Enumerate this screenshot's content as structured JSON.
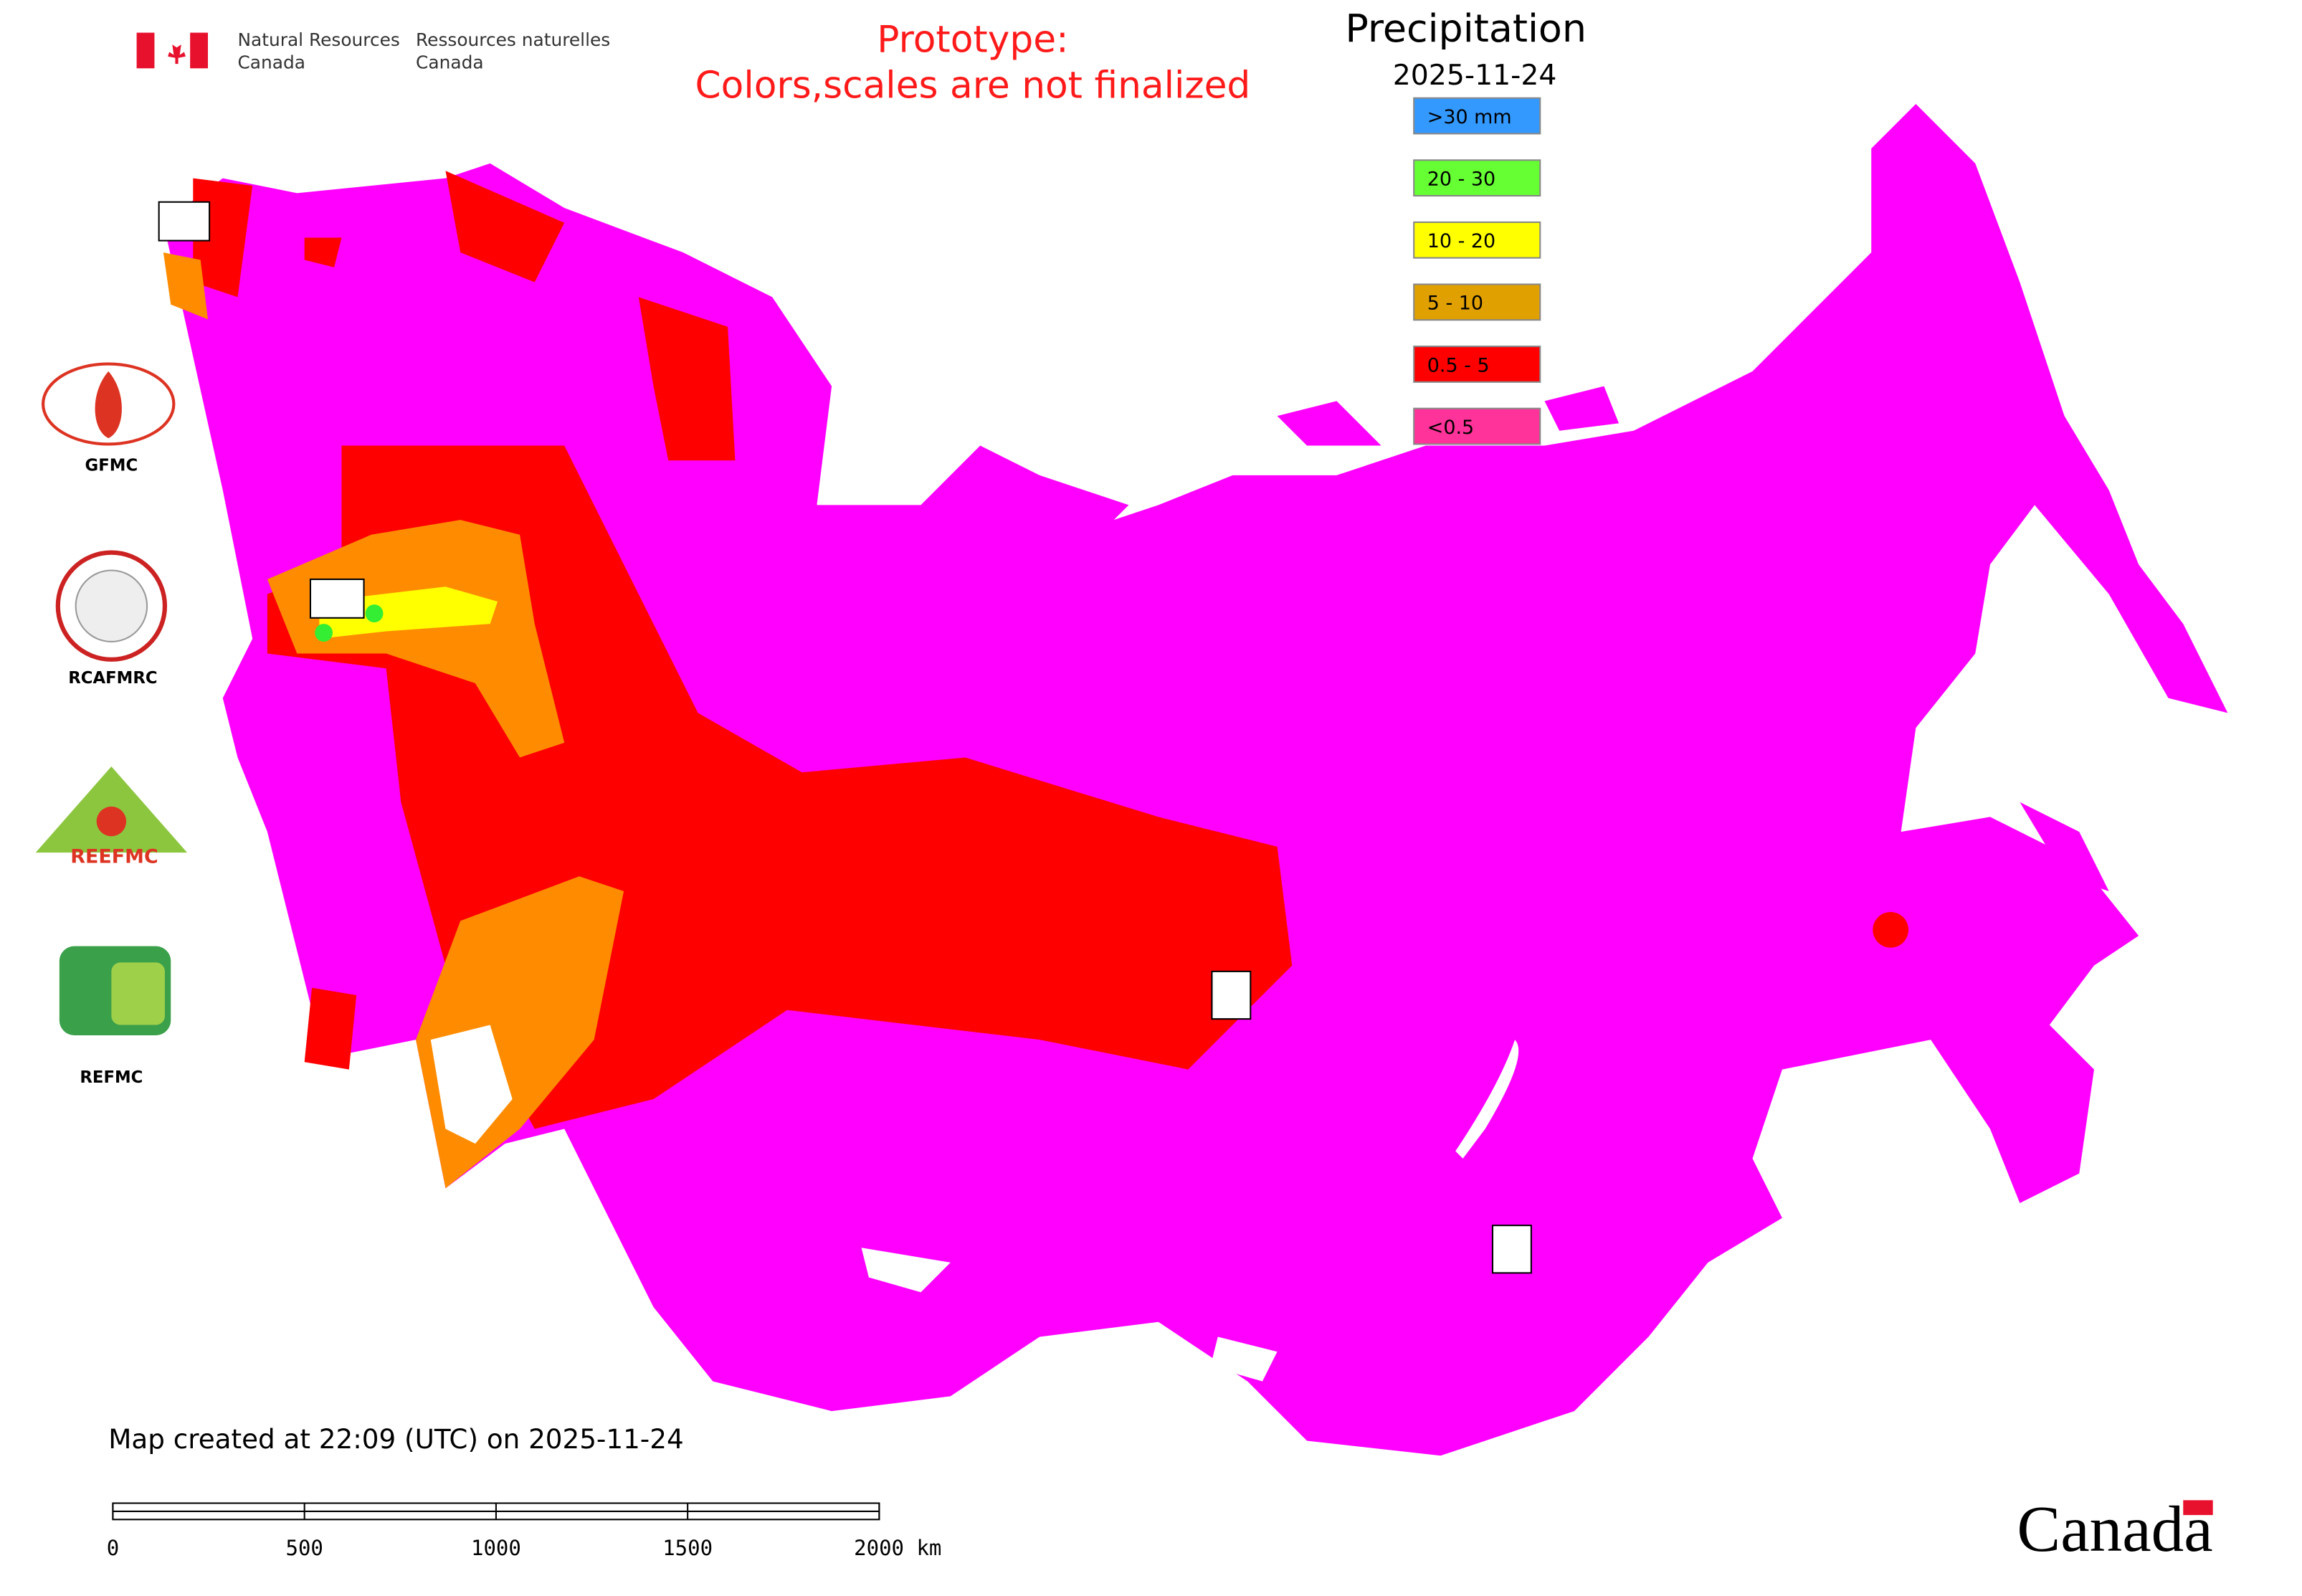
{
  "header": {
    "agency_en": [
      "Natural Resources",
      "Canada"
    ],
    "agency_fr": [
      "Ressources naturelles",
      "Canada"
    ]
  },
  "notice": [
    "Prototype:",
    "Colors,scales are not finalized"
  ],
  "title": "Precipitation",
  "date": "2025-11-24",
  "legend": {
    "items": [
      {
        "label": ">30 mm",
        "color": "#3399ff"
      },
      {
        "label": "20 - 30",
        "color": "#66ff33"
      },
      {
        "label": "10 - 20",
        "color": "#ffff00"
      },
      {
        "label": "5 - 10",
        "color": "#e0a000"
      },
      {
        "label": "0.5 - 5",
        "color": "#ff0000"
      },
      {
        "label": "<0.5",
        "color": "#ff3399"
      }
    ]
  },
  "logos": [
    "GFMC",
    "RCAFMRC",
    "REEFMC",
    "REFMC"
  ],
  "footer": "Map created at 22:09 (UTC) on 2025-11-24",
  "scale_bar": {
    "labels": [
      "0",
      "500",
      "1000",
      "1500",
      "2000 km"
    ]
  },
  "wordmark": "Canada"
}
